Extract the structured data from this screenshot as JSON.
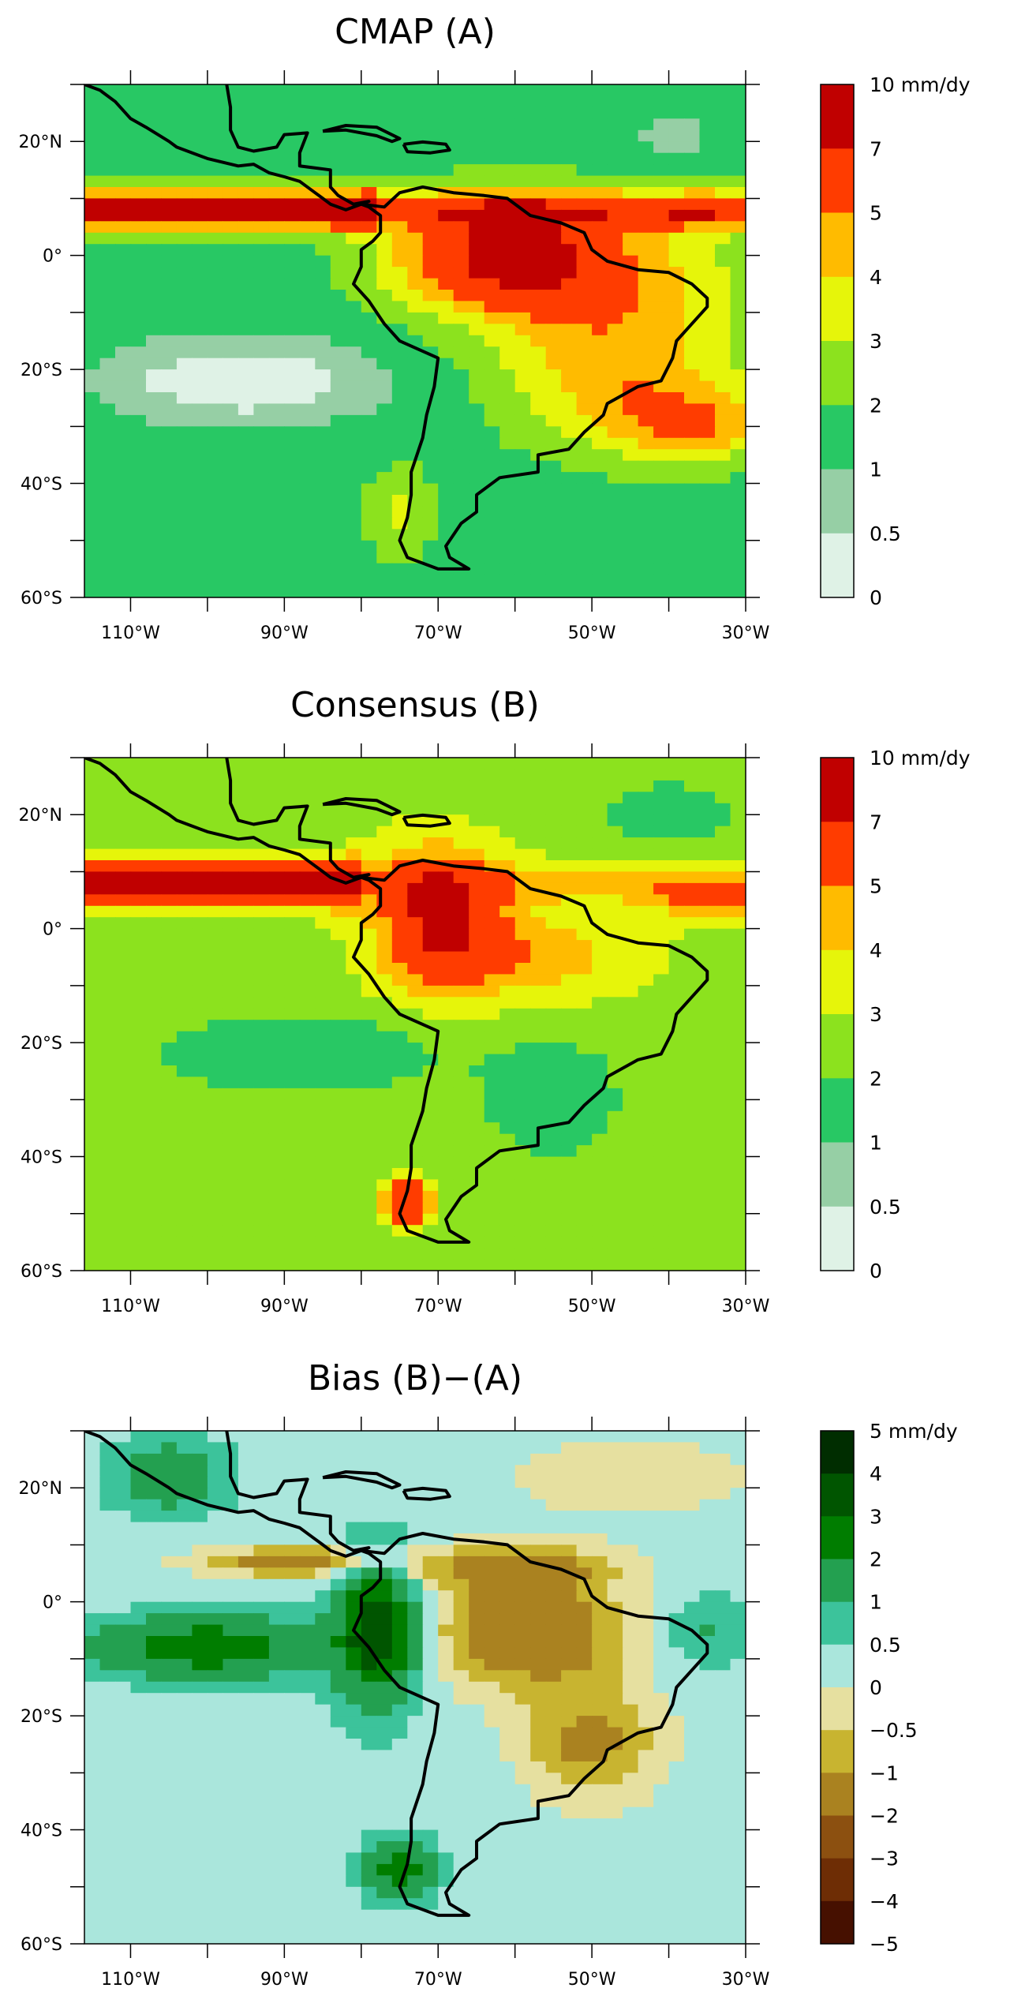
{
  "axes": {
    "lon_ticks": [
      {
        "value": -110,
        "label": "110°W"
      },
      {
        "value": -90,
        "label": "90°W"
      },
      {
        "value": -70,
        "label": "70°W"
      },
      {
        "value": -50,
        "label": "50°W"
      },
      {
        "value": -30,
        "label": "30°W"
      }
    ],
    "lat_ticks": [
      {
        "value": 20,
        "label": "20°N"
      },
      {
        "value": 0,
        "label": "0°"
      },
      {
        "value": -20,
        "label": "20°S"
      },
      {
        "value": -40,
        "label": "40°S"
      },
      {
        "value": -60,
        "label": "60°S"
      }
    ],
    "lon_range": [
      -116,
      -30
    ],
    "lat_range": [
      -60,
      30
    ]
  },
  "panels": [
    {
      "id": "cmap",
      "title": "CMAP (A)",
      "unit": "mm/dy",
      "legend": {
        "labels": [
          "10 mm/dy",
          "7",
          "5",
          "4",
          "3",
          "2",
          "1",
          "0.5",
          "0"
        ],
        "colors": [
          "#c00000",
          "#ff3c00",
          "#ffbb00",
          "#e6f50a",
          "#8ce21e",
          "#28c864",
          "#96cfa5",
          "#dff2e6"
        ]
      },
      "field": "cmap"
    },
    {
      "id": "consensus",
      "title": "Consensus (B)",
      "unit": "mm/dy",
      "legend": {
        "labels": [
          "10 mm/dy",
          "7",
          "5",
          "4",
          "3",
          "2",
          "1",
          "0.5",
          "0"
        ],
        "colors": [
          "#c00000",
          "#ff3c00",
          "#ffbb00",
          "#e6f50a",
          "#8ce21e",
          "#28c864",
          "#96cfa5",
          "#dff2e6"
        ]
      },
      "field": "consensus"
    },
    {
      "id": "bias",
      "title": "Bias (B)−(A)",
      "unit": "mm/dy",
      "legend": {
        "labels": [
          "5 mm/dy",
          "4",
          "3",
          "2",
          "1",
          "0.5",
          "0",
          "−0.5",
          "−1",
          "−2",
          "−3",
          "−4",
          "−5"
        ],
        "colors": [
          "#002d00",
          "#005500",
          "#007d00",
          "#23a050",
          "#3cc39b",
          "#aae6dc",
          "#e6e0a0",
          "#c8b430",
          "#aa8220",
          "#8c5010",
          "#6e2d05",
          "#461000"
        ]
      },
      "field": "bias"
    }
  ]
}
